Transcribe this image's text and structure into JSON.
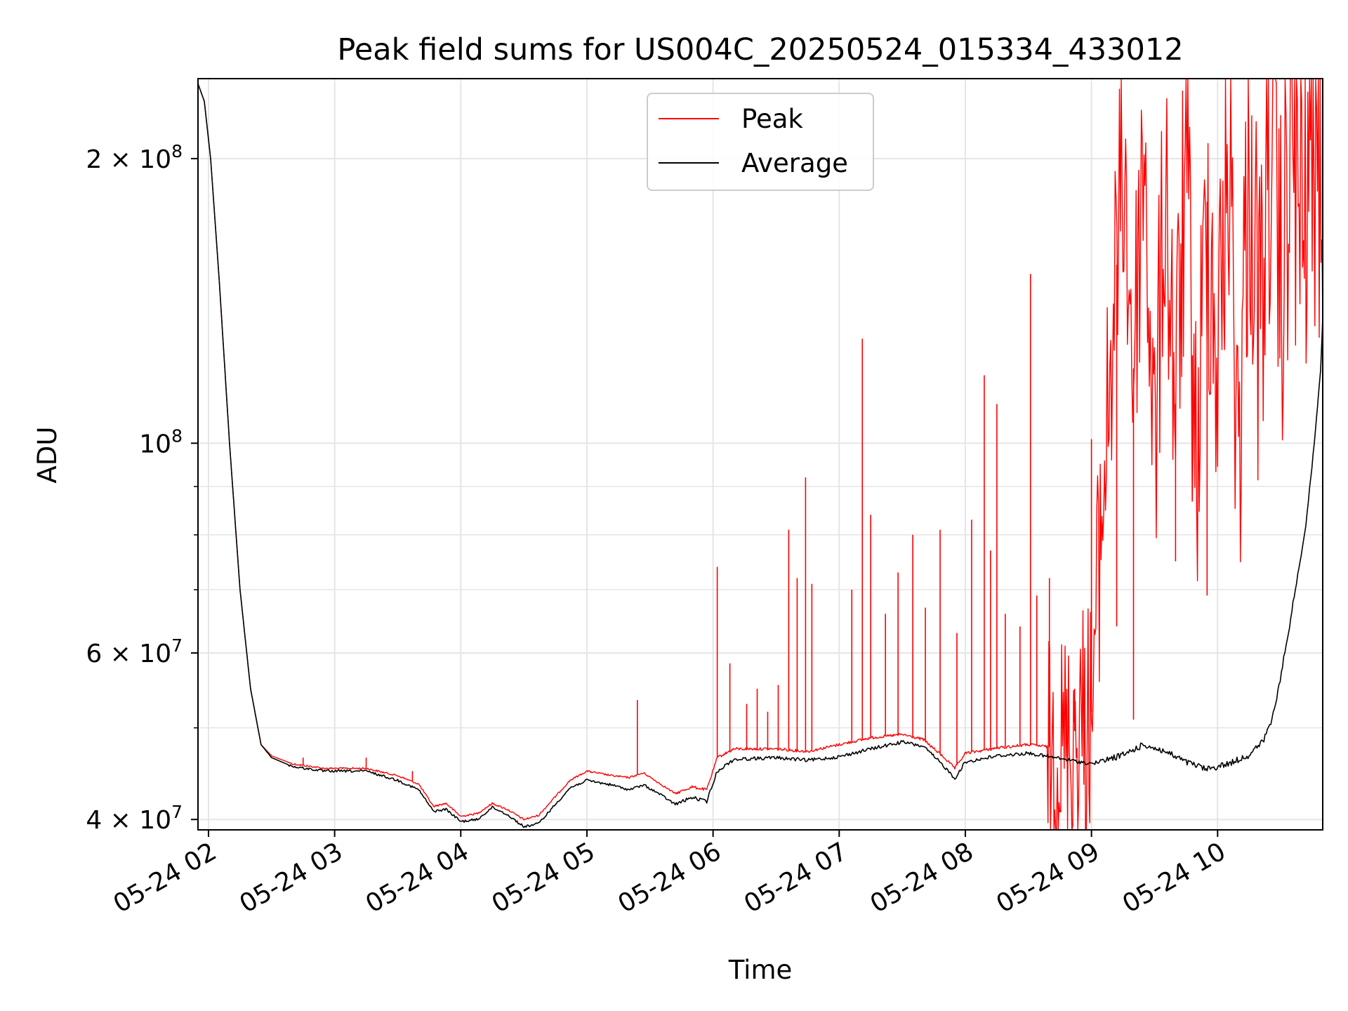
{
  "colors": {
    "peak": "#ff0000",
    "average": "#000000",
    "grid": "#e5e5e5",
    "axis": "#000000"
  },
  "chart_data": {
    "type": "line",
    "title": "Peak field sums for US004C_20250524_015334_433012",
    "xlabel": "Time",
    "ylabel": "ADU",
    "y_scale": "log",
    "ylim": [
      39000000,
      243000000
    ],
    "xlim": [
      "2025-05-24 01:55",
      "2025-05-24 10:50"
    ],
    "grid": true,
    "legend_position": "upper center",
    "x_ticks": [
      {
        "label": "05-24 02",
        "x": "2025-05-24 02:00"
      },
      {
        "label": "05-24 03",
        "x": "2025-05-24 03:00"
      },
      {
        "label": "05-24 04",
        "x": "2025-05-24 04:00"
      },
      {
        "label": "05-24 05",
        "x": "2025-05-24 05:00"
      },
      {
        "label": "05-24 06",
        "x": "2025-05-24 06:00"
      },
      {
        "label": "05-24 07",
        "x": "2025-05-24 07:00"
      },
      {
        "label": "05-24 08",
        "x": "2025-05-24 08:00"
      },
      {
        "label": "05-24 09",
        "x": "2025-05-24 09:00"
      },
      {
        "label": "05-24 10",
        "x": "2025-05-24 10:00"
      }
    ],
    "y_ticks_major": [
      {
        "value": 40000000,
        "base": "4 × 10",
        "exp": "7"
      },
      {
        "value": 60000000,
        "base": "6 × 10",
        "exp": "7"
      },
      {
        "value": 100000000,
        "base": "10",
        "exp": "8"
      },
      {
        "value": 200000000,
        "base": "2 × 10",
        "exp": "8"
      }
    ],
    "y_ticks_minor": [
      50000000,
      70000000,
      80000000,
      90000000
    ],
    "series": [
      {
        "name": "Average",
        "color": "#000000",
        "points": [
          [
            "2025-05-24 01:55",
            240000000
          ],
          [
            "2025-05-24 01:58",
            230000000
          ],
          [
            "2025-05-24 02:01",
            200000000
          ],
          [
            "2025-05-24 02:05",
            150000000
          ],
          [
            "2025-05-24 02:10",
            100000000
          ],
          [
            "2025-05-24 02:15",
            70000000
          ],
          [
            "2025-05-24 02:20",
            55000000
          ],
          [
            "2025-05-24 02:25",
            48000000
          ],
          [
            "2025-05-24 02:30",
            46500000
          ],
          [
            "2025-05-24 02:40",
            45500000
          ],
          [
            "2025-05-24 02:55",
            45000000
          ],
          [
            "2025-05-24 03:15",
            45000000
          ],
          [
            "2025-05-24 03:30",
            44000000
          ],
          [
            "2025-05-24 03:40",
            43000000
          ],
          [
            "2025-05-24 03:47",
            40800000
          ],
          [
            "2025-05-24 03:53",
            41000000
          ],
          [
            "2025-05-24 04:00",
            39800000
          ],
          [
            "2025-05-24 04:08",
            40000000
          ],
          [
            "2025-05-24 04:15",
            41200000
          ],
          [
            "2025-05-24 04:22",
            40500000
          ],
          [
            "2025-05-24 04:30",
            39300000
          ],
          [
            "2025-05-24 04:37",
            39600000
          ],
          [
            "2025-05-24 04:45",
            41500000
          ],
          [
            "2025-05-24 04:52",
            43200000
          ],
          [
            "2025-05-24 05:00",
            44000000
          ],
          [
            "2025-05-24 05:12",
            43500000
          ],
          [
            "2025-05-24 05:20",
            43000000
          ],
          [
            "2025-05-24 05:27",
            43500000
          ],
          [
            "2025-05-24 05:35",
            42500000
          ],
          [
            "2025-05-24 05:42",
            41500000
          ],
          [
            "2025-05-24 05:50",
            42200000
          ],
          [
            "2025-05-24 05:57",
            41800000
          ],
          [
            "2025-05-24 06:02",
            45000000
          ],
          [
            "2025-05-24 06:10",
            46300000
          ],
          [
            "2025-05-24 06:30",
            46500000
          ],
          [
            "2025-05-24 06:45",
            46200000
          ],
          [
            "2025-05-24 07:00",
            46600000
          ],
          [
            "2025-05-24 07:15",
            47500000
          ],
          [
            "2025-05-24 07:30",
            48300000
          ],
          [
            "2025-05-24 07:40",
            47800000
          ],
          [
            "2025-05-24 07:50",
            45500000
          ],
          [
            "2025-05-24 07:55",
            44200000
          ],
          [
            "2025-05-24 08:00",
            46000000
          ],
          [
            "2025-05-24 08:15",
            46700000
          ],
          [
            "2025-05-24 08:30",
            47000000
          ],
          [
            "2025-05-24 08:45",
            46400000
          ],
          [
            "2025-05-24 09:00",
            45800000
          ],
          [
            "2025-05-24 09:15",
            46800000
          ],
          [
            "2025-05-24 09:25",
            48000000
          ],
          [
            "2025-05-24 09:35",
            47200000
          ],
          [
            "2025-05-24 09:45",
            46000000
          ],
          [
            "2025-05-24 09:55",
            45200000
          ],
          [
            "2025-05-24 10:05",
            45800000
          ],
          [
            "2025-05-24 10:15",
            46800000
          ],
          [
            "2025-05-24 10:22",
            48500000
          ],
          [
            "2025-05-24 10:27",
            52000000
          ],
          [
            "2025-05-24 10:32",
            60000000
          ],
          [
            "2025-05-24 10:37",
            70000000
          ],
          [
            "2025-05-24 10:42",
            82000000
          ],
          [
            "2025-05-24 10:46",
            100000000
          ],
          [
            "2025-05-24 10:49",
            120000000
          ],
          [
            "2025-05-24 10:50",
            135000000
          ]
        ]
      },
      {
        "name": "Peak",
        "color": "#ff0000",
        "points": [
          [
            "2025-05-24 01:55",
            240000000
          ],
          [
            "2025-05-24 01:58",
            230000000
          ],
          [
            "2025-05-24 02:01",
            200000000
          ],
          [
            "2025-05-24 02:05",
            150000000
          ],
          [
            "2025-05-24 02:10",
            100000000
          ],
          [
            "2025-05-24 02:15",
            70000000
          ],
          [
            "2025-05-24 02:20",
            55000000
          ],
          [
            "2025-05-24 02:25",
            48000000
          ],
          [
            "2025-05-24 02:30",
            46700000
          ],
          [
            "2025-05-24 02:40",
            45800000
          ],
          [
            "2025-05-24 02:55",
            45300000
          ],
          [
            "2025-05-24 03:15",
            45300000
          ],
          [
            "2025-05-24 03:30",
            44500000
          ],
          [
            "2025-05-24 03:40",
            43600000
          ],
          [
            "2025-05-24 03:47",
            41300000
          ],
          [
            "2025-05-24 03:53",
            41600000
          ],
          [
            "2025-05-24 04:00",
            40300000
          ],
          [
            "2025-05-24 04:08",
            40600000
          ],
          [
            "2025-05-24 04:15",
            41600000
          ],
          [
            "2025-05-24 04:22",
            41000000
          ],
          [
            "2025-05-24 04:30",
            40000000
          ],
          [
            "2025-05-24 04:37",
            40400000
          ],
          [
            "2025-05-24 04:45",
            42300000
          ],
          [
            "2025-05-24 04:52",
            44000000
          ],
          [
            "2025-05-24 05:00",
            45000000
          ],
          [
            "2025-05-24 05:12",
            44500000
          ],
          [
            "2025-05-24 05:20",
            44300000
          ],
          [
            "2025-05-24 05:27",
            44800000
          ],
          [
            "2025-05-24 05:35",
            43600000
          ],
          [
            "2025-05-24 05:42",
            42600000
          ],
          [
            "2025-05-24 05:50",
            43300000
          ],
          [
            "2025-05-24 05:57",
            43000000
          ],
          [
            "2025-05-24 06:02",
            46500000
          ],
          [
            "2025-05-24 06:10",
            47500000
          ],
          [
            "2025-05-24 06:30",
            47500000
          ],
          [
            "2025-05-24 06:45",
            47200000
          ],
          [
            "2025-05-24 07:00",
            48000000
          ],
          [
            "2025-05-24 07:15",
            48800000
          ],
          [
            "2025-05-24 07:30",
            49200000
          ],
          [
            "2025-05-24 07:40",
            48600000
          ],
          [
            "2025-05-24 07:50",
            46500000
          ],
          [
            "2025-05-24 07:55",
            45300000
          ],
          [
            "2025-05-24 08:00",
            47000000
          ],
          [
            "2025-05-24 08:15",
            47600000
          ],
          [
            "2025-05-24 08:30",
            48000000
          ],
          [
            "2025-05-24 08:45",
            47600000
          ],
          [
            "2025-05-24 09:00",
            52000000
          ],
          [
            "2025-05-24 09:05",
            85000000
          ],
          [
            "2025-05-24 09:10",
            130000000
          ],
          [
            "2025-05-24 09:15",
            200000000
          ],
          [
            "2025-05-24 09:20",
            120000000
          ],
          [
            "2025-05-24 09:25",
            210000000
          ],
          [
            "2025-05-24 09:30",
            95000000
          ],
          [
            "2025-05-24 09:35",
            190000000
          ],
          [
            "2025-05-24 09:40",
            110000000
          ],
          [
            "2025-05-24 09:45",
            200000000
          ],
          [
            "2025-05-24 09:50",
            90000000
          ],
          [
            "2025-05-24 09:55",
            180000000
          ],
          [
            "2025-05-24 10:00",
            120000000
          ],
          [
            "2025-05-24 10:05",
            210000000
          ],
          [
            "2025-05-24 10:10",
            100000000
          ],
          [
            "2025-05-24 10:15",
            205000000
          ],
          [
            "2025-05-24 10:20",
            130000000
          ],
          [
            "2025-05-24 10:25",
            215000000
          ],
          [
            "2025-05-24 10:30",
            140000000
          ],
          [
            "2025-05-24 10:35",
            220000000
          ],
          [
            "2025-05-24 10:40",
            160000000
          ],
          [
            "2025-05-24 10:45",
            225000000
          ],
          [
            "2025-05-24 10:50",
            190000000
          ]
        ],
        "spikes": [
          [
            "2025-05-24 02:45",
            46500000
          ],
          [
            "2025-05-24 03:15",
            46500000
          ],
          [
            "2025-05-24 03:37",
            45000000
          ],
          [
            "2025-05-24 05:24",
            53500000
          ],
          [
            "2025-05-24 06:02",
            74000000
          ],
          [
            "2025-05-24 06:08",
            58500000
          ],
          [
            "2025-05-24 06:16",
            53000000
          ],
          [
            "2025-05-24 06:21",
            55000000
          ],
          [
            "2025-05-24 06:26",
            52000000
          ],
          [
            "2025-05-24 06:31",
            55500000
          ],
          [
            "2025-05-24 06:36",
            81000000
          ],
          [
            "2025-05-24 06:40",
            72000000
          ],
          [
            "2025-05-24 06:44",
            92000000
          ],
          [
            "2025-05-24 06:47",
            71000000
          ],
          [
            "2025-05-24 07:06",
            70000000
          ],
          [
            "2025-05-24 07:11",
            129000000
          ],
          [
            "2025-05-24 07:15",
            84000000
          ],
          [
            "2025-05-24 07:22",
            66000000
          ],
          [
            "2025-05-24 07:28",
            73000000
          ],
          [
            "2025-05-24 07:35",
            80000000
          ],
          [
            "2025-05-24 07:41",
            67000000
          ],
          [
            "2025-05-24 07:48",
            81000000
          ],
          [
            "2025-05-24 07:56",
            63000000
          ],
          [
            "2025-05-24 08:03",
            83000000
          ],
          [
            "2025-05-24 08:09",
            118000000
          ],
          [
            "2025-05-24 08:12",
            77000000
          ],
          [
            "2025-05-24 08:15",
            110000000
          ],
          [
            "2025-05-24 08:19",
            66000000
          ],
          [
            "2025-05-24 08:26",
            64000000
          ],
          [
            "2025-05-24 08:31",
            151000000
          ],
          [
            "2025-05-24 08:34",
            69000000
          ],
          [
            "2025-05-24 08:40",
            72000000
          ],
          [
            "2025-05-24 08:52",
            55000000
          ],
          [
            "2025-05-24 09:00",
            101000000
          ],
          [
            "2025-05-24 09:12",
            64000000
          ],
          [
            "2025-05-24 09:20",
            51000000
          ],
          [
            "2025-05-24 09:40",
            75000000
          ],
          [
            "2025-05-24 09:48",
            87000000
          ],
          [
            "2025-05-24 09:55",
            69000000
          ]
        ]
      }
    ]
  },
  "legend": {
    "items": [
      {
        "label": "Peak",
        "color": "#ff0000"
      },
      {
        "label": "Average",
        "color": "#000000"
      }
    ]
  }
}
